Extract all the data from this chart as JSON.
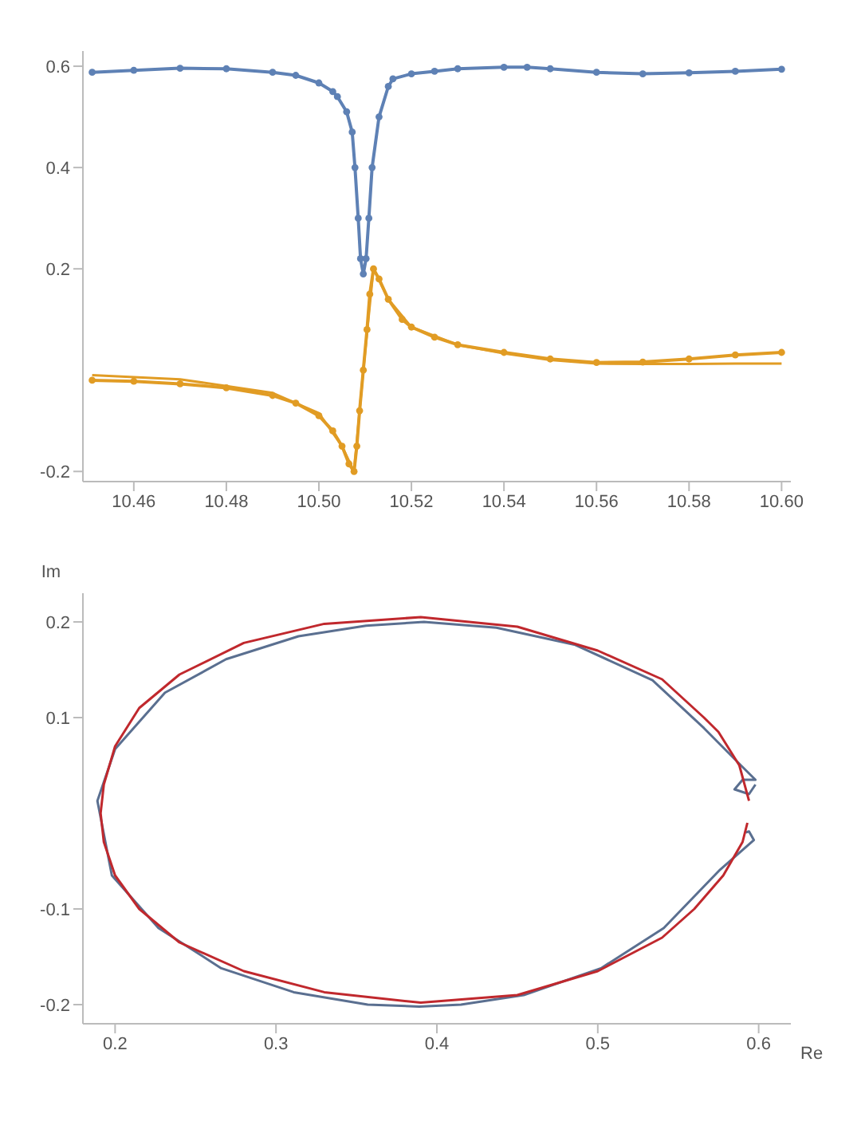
{
  "chart_data": [
    {
      "type": "line",
      "marker": "circle",
      "xlim": [
        10.449,
        10.602
      ],
      "ylim": [
        -0.22,
        0.63
      ],
      "xticks": [
        10.46,
        10.48,
        {
          "value": 10.5,
          "label": "10.50"
        },
        10.52,
        10.54,
        10.56,
        10.58,
        {
          "value": 10.6,
          "label": "10.60"
        }
      ],
      "yticks": [
        -0.2,
        0.2,
        0.4,
        0.6
      ],
      "series": [
        {
          "color": "#5e81b5",
          "x": [
            10.451,
            10.46,
            10.47,
            10.48,
            10.49,
            10.495,
            10.5,
            10.503,
            10.504,
            10.506,
            10.5072,
            10.5078,
            10.5085,
            10.509,
            10.5096,
            10.5102,
            10.5108,
            10.5115,
            10.513,
            10.515,
            10.516,
            10.52,
            10.525,
            10.53,
            10.54,
            10.545,
            10.55,
            10.56,
            10.57,
            10.58,
            10.59,
            10.6
          ],
          "values": [
            0.588,
            0.592,
            0.596,
            0.595,
            0.588,
            0.582,
            0.567,
            0.55,
            0.54,
            0.51,
            0.47,
            0.4,
            0.3,
            0.22,
            0.19,
            0.22,
            0.3,
            0.4,
            0.5,
            0.56,
            0.575,
            0.585,
            0.59,
            0.595,
            0.598,
            0.598,
            0.595,
            0.588,
            0.585,
            0.587,
            0.59,
            0.594
          ]
        },
        {
          "color": "#e19c24",
          "x": [
            10.451,
            10.46,
            10.47,
            10.48,
            10.49,
            10.495,
            10.5,
            10.503,
            10.505,
            10.5065,
            10.5076,
            10.5082,
            10.5088,
            10.5096,
            10.5104,
            10.511,
            10.5118,
            10.513,
            10.515,
            10.518,
            10.52,
            10.525,
            10.53,
            10.54,
            10.55,
            10.56,
            10.57,
            10.58,
            10.59,
            10.6
          ],
          "values": [
            -0.02,
            -0.022,
            -0.027,
            -0.035,
            -0.05,
            -0.065,
            -0.09,
            -0.12,
            -0.15,
            -0.185,
            -0.2,
            -0.15,
            -0.08,
            0,
            0.08,
            0.15,
            0.2,
            0.18,
            0.14,
            0.1,
            0.085,
            0.065,
            0.05,
            0.035,
            0.022,
            0.015,
            0.016,
            0.022,
            0.03,
            0.035
          ]
        },
        {
          "color": "#e19c24",
          "marker": "none",
          "x": [
            10.451,
            10.47,
            10.49,
            10.5,
            10.505,
            10.5076,
            10.5096,
            10.5118,
            10.515,
            10.52,
            10.53,
            10.54,
            10.55,
            10.56,
            10.57,
            10.58,
            10.59,
            10.6
          ],
          "values": [
            -0.01,
            -0.018,
            -0.045,
            -0.085,
            -0.15,
            -0.2,
            0,
            0.2,
            0.14,
            0.085,
            0.05,
            0.033,
            0.02,
            0.013,
            0.012,
            0.012,
            0.013,
            0.013
          ]
        }
      ]
    },
    {
      "type": "line",
      "marker": "none",
      "xlabel": "Re",
      "ylabel": "Im",
      "xlim": [
        0.18,
        0.62
      ],
      "ylim": [
        -0.22,
        0.23
      ],
      "xticks": [
        0.2,
        0.3,
        0.4,
        0.5,
        0.6
      ],
      "yticks": [
        -0.2,
        -0.1,
        0.1,
        0.2
      ],
      "series": [
        {
          "color": "#5a6f90",
          "x": [
            0.598,
            0.594,
            0.585,
            0.59,
            0.598,
            0.589,
            0.566,
            0.534,
            0.486,
            0.437,
            0.392,
            0.356,
            0.314,
            0.269,
            0.231,
            0.2,
            0.189,
            0.198,
            0.227,
            0.266,
            0.311,
            0.357,
            0.389,
            0.415,
            0.454,
            0.502,
            0.541,
            0.576,
            0.597,
            0.594,
            0.592
          ],
          "values": [
            0.03,
            0.02,
            0.025,
            0.035,
            0.035,
            0.05,
            0.089,
            0.139,
            0.176,
            0.194,
            0.2,
            0.196,
            0.185,
            0.161,
            0.126,
            0.067,
            0.013,
            -0.065,
            -0.12,
            -0.162,
            -0.187,
            -0.2,
            -0.202,
            -0.2,
            -0.19,
            -0.162,
            -0.12,
            -0.059,
            -0.028,
            -0.019,
            -0.02
          ]
        },
        {
          "color": "#c0282d",
          "x": [
            0.594,
            0.588,
            0.575,
            0.566,
            0.54,
            0.5,
            0.45,
            0.39,
            0.33,
            0.28,
            0.24,
            0.215,
            0.2,
            0.193,
            0.191,
            0.193,
            0.2,
            0.215,
            0.24,
            0.28,
            0.33,
            0.39,
            0.45,
            0.5,
            0.54,
            0.56,
            0.578,
            0.59,
            0.593
          ],
          "values": [
            0.013,
            0.05,
            0.085,
            0.1,
            0.14,
            0.17,
            0.195,
            0.205,
            0.198,
            0.178,
            0.145,
            0.11,
            0.07,
            0.03,
            0,
            -0.03,
            -0.065,
            -0.1,
            -0.135,
            -0.165,
            -0.187,
            -0.198,
            -0.19,
            -0.165,
            -0.13,
            -0.1,
            -0.065,
            -0.03,
            -0.01
          ]
        }
      ]
    }
  ]
}
